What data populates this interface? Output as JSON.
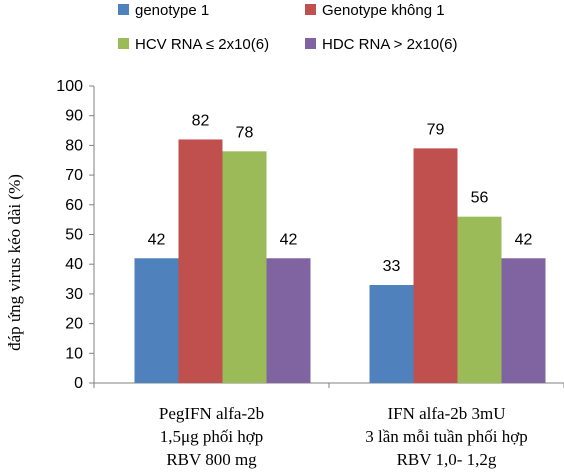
{
  "chart_data": {
    "type": "bar",
    "categories": [
      [
        "PegIFN alfa-2b",
        "1,5μg phối hợp",
        "RBV 800 mg"
      ],
      [
        "IFN alfa-2b  3mU",
        "3 lần mỗi tuần phối hợp",
        "RBV 1,0- 1,2g"
      ]
    ],
    "series": [
      {
        "name": "genotype 1",
        "values": [
          42,
          33
        ],
        "color": "#4F81BD"
      },
      {
        "name": "Genotype không 1",
        "values": [
          82,
          79
        ],
        "color": "#C0504D"
      },
      {
        "name": "HCV RNA ≤ 2x10(6)",
        "values": [
          78,
          56
        ],
        "color": "#9BBB59"
      },
      {
        "name": "HDC RNA > 2x10(6)",
        "values": [
          42,
          42
        ],
        "color": "#8064A2"
      }
    ],
    "ylabel": "đáp ứng virus kéo dài (%)",
    "xlabel": "",
    "title": "",
    "ylim": [
      0,
      100
    ],
    "yticks": [
      0,
      10,
      20,
      30,
      40,
      50,
      60,
      70,
      80,
      90,
      100
    ],
    "grid": false,
    "legend_position": "top",
    "data_labels": true
  }
}
